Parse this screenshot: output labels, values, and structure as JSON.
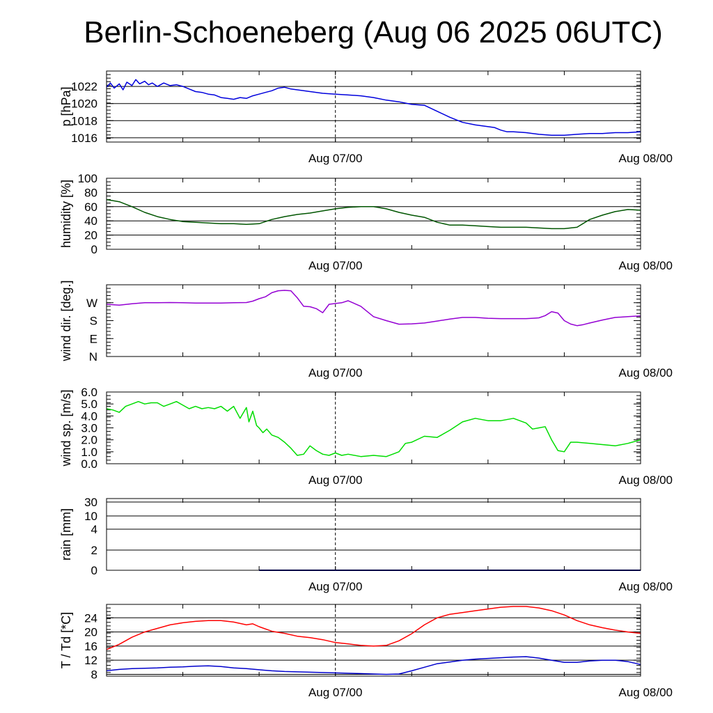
{
  "title": "Berlin-Schoeneberg (Aug 06 2025 06UTC)",
  "x_tick_labels": [
    "Aug 07/00",
    "Aug 08/00"
  ],
  "colors": {
    "pressure": "#0000dd",
    "humidity": "#005500",
    "wind_dir": "#9400d3",
    "wind_speed": "#00dd00",
    "temperature": "#ff0000",
    "dewpoint": "#0000cc",
    "grid": "#000000"
  },
  "chart_data": [
    {
      "type": "line",
      "ylabel": "p [hPa]",
      "x_unit": "hours from Aug 06 06UTC",
      "x_range": [
        0,
        42
      ],
      "ylim": [
        1015.5,
        1023.8
      ],
      "yticks": [
        1016,
        1018,
        1020,
        1022
      ],
      "ytick_labels": [
        "1016",
        "1018",
        "1020",
        "1022"
      ],
      "grid": true,
      "series": [
        {
          "key": "pressure",
          "x": [
            0,
            0.3,
            0.6,
            1,
            1.3,
            1.6,
            2,
            2.3,
            2.6,
            3,
            3.3,
            3.6,
            4,
            4.5,
            5,
            5.5,
            6,
            6.5,
            7,
            7.5,
            8,
            8.5,
            9,
            9.5,
            10,
            10.5,
            11,
            11.5,
            12,
            12.5,
            13,
            13.5,
            14,
            14.5,
            15,
            15.5,
            16,
            17,
            18,
            19,
            20,
            21,
            22,
            23,
            24,
            25,
            26,
            27,
            28,
            29,
            30,
            30.5,
            31,
            31.5,
            32,
            33,
            34,
            35,
            36,
            37,
            38,
            39,
            40,
            41,
            42
          ],
          "values": [
            1021.9,
            1022.4,
            1021.8,
            1022.3,
            1021.6,
            1022.5,
            1022.1,
            1022.8,
            1022.3,
            1022.6,
            1022.2,
            1022.4,
            1022.0,
            1022.4,
            1022.1,
            1022.2,
            1022.0,
            1021.7,
            1021.4,
            1021.3,
            1021.1,
            1021.0,
            1020.7,
            1020.6,
            1020.5,
            1020.7,
            1020.6,
            1020.9,
            1021.1,
            1021.3,
            1021.5,
            1021.8,
            1021.9,
            1021.7,
            1021.6,
            1021.5,
            1021.4,
            1021.2,
            1021.1,
            1021.0,
            1020.9,
            1020.7,
            1020.4,
            1020.2,
            1019.9,
            1019.8,
            1019.1,
            1018.4,
            1017.8,
            1017.5,
            1017.3,
            1017.2,
            1016.9,
            1016.7,
            1016.7,
            1016.6,
            1016.4,
            1016.3,
            1016.3,
            1016.4,
            1016.5,
            1016.5,
            1016.6,
            1016.6,
            1016.7
          ]
        }
      ]
    },
    {
      "type": "line",
      "ylabel": "humidity [%]",
      "x_unit": "hours from Aug 06 06UTC",
      "x_range": [
        0,
        42
      ],
      "ylim": [
        0,
        100
      ],
      "yticks": [
        0,
        20,
        40,
        60,
        80,
        100
      ],
      "ytick_labels": [
        "0",
        "20",
        "40",
        "60",
        "80",
        "100"
      ],
      "grid": true,
      "series": [
        {
          "key": "humidity",
          "x": [
            0,
            1,
            2,
            3,
            4,
            5,
            6,
            7,
            8,
            9,
            10,
            11,
            12,
            13,
            14,
            15,
            16,
            17,
            18,
            19,
            20,
            21,
            22,
            23,
            24,
            25,
            26,
            27,
            28,
            29,
            30,
            31,
            32,
            33,
            34,
            35,
            36,
            37,
            38,
            39,
            40,
            41,
            42
          ],
          "values": [
            70,
            67,
            60,
            52,
            46,
            42,
            39,
            38,
            37,
            36,
            36,
            35,
            36,
            42,
            46,
            49,
            51,
            54,
            57,
            59,
            60,
            60,
            57,
            52,
            48,
            45,
            38,
            34,
            34,
            33,
            32,
            31,
            31,
            31,
            30,
            29,
            29,
            31,
            42,
            48,
            53,
            56,
            55
          ]
        }
      ]
    },
    {
      "type": "line",
      "ylabel": "wind dir. [deg.]",
      "x_unit": "hours from Aug 06 06UTC",
      "x_range": [
        0,
        42
      ],
      "ylim": [
        0,
        360
      ],
      "yticks": [
        0,
        90,
        180,
        270
      ],
      "ytick_labels": [
        "N",
        "E",
        "S",
        "W"
      ],
      "grid": false,
      "series": [
        {
          "key": "wind_dir",
          "x": [
            0,
            1,
            2,
            3,
            4,
            5,
            6,
            7,
            8,
            9,
            10,
            11,
            11.5,
            12,
            12.5,
            13,
            13.5,
            14,
            14.5,
            15,
            15.5,
            16,
            16.5,
            17,
            17.5,
            18,
            18.5,
            19,
            20,
            21,
            22,
            23,
            24,
            25,
            26,
            27,
            28,
            29,
            30,
            31,
            32,
            33,
            33.5,
            34,
            34.5,
            35,
            35.5,
            36,
            36.5,
            37,
            37.5,
            38,
            39,
            40,
            41,
            42
          ],
          "values": [
            262,
            258,
            265,
            270,
            270,
            271,
            270,
            268,
            268,
            268,
            270,
            271,
            278,
            290,
            300,
            320,
            330,
            332,
            330,
            295,
            252,
            250,
            240,
            220,
            262,
            266,
            270,
            280,
            252,
            200,
            180,
            162,
            164,
            168,
            178,
            188,
            196,
            196,
            192,
            190,
            190,
            190,
            192,
            194,
            205,
            225,
            218,
            180,
            163,
            155,
            160,
            168,
            183,
            196,
            200,
            204
          ]
        }
      ]
    },
    {
      "type": "line",
      "ylabel": "wind sp. [m/s]",
      "x_unit": "hours from Aug 06 06UTC",
      "x_range": [
        0,
        42
      ],
      "ylim": [
        0,
        6.0
      ],
      "yticks": [
        0,
        1,
        2,
        3,
        4,
        5,
        6
      ],
      "ytick_labels": [
        "0.0",
        "1.0",
        "2.0",
        "3.0",
        "4.0",
        "5.0",
        "6.0"
      ],
      "grid": false,
      "series": [
        {
          "key": "wind_speed",
          "x": [
            0,
            0.5,
            1,
            1.5,
            2,
            2.5,
            3,
            3.5,
            4,
            4.5,
            5,
            5.5,
            6,
            6.5,
            7,
            7.5,
            8,
            8.5,
            9,
            9.5,
            10,
            10.5,
            11,
            11.2,
            11.5,
            11.8,
            12,
            12.3,
            12.6,
            13,
            13.5,
            14,
            14.5,
            15,
            15.5,
            16,
            16.5,
            17,
            17.5,
            18,
            18.5,
            19,
            20,
            21,
            22,
            22.5,
            23,
            23.5,
            24,
            25,
            26,
            27,
            28,
            29,
            30,
            31,
            32,
            33,
            33.5,
            34,
            34.5,
            35,
            35.5,
            36,
            36.5,
            37,
            38,
            39,
            40,
            41,
            42
          ],
          "values": [
            4.6,
            4.5,
            4.3,
            4.8,
            5.0,
            5.2,
            5.0,
            5.1,
            5.1,
            4.8,
            5.0,
            5.2,
            4.9,
            4.6,
            4.8,
            4.6,
            4.7,
            4.6,
            4.8,
            4.4,
            4.8,
            3.8,
            4.7,
            3.5,
            4.4,
            3.2,
            3.0,
            2.6,
            2.9,
            2.4,
            2.2,
            1.8,
            1.3,
            0.7,
            0.8,
            1.5,
            1.1,
            0.8,
            0.7,
            0.9,
            0.7,
            0.8,
            0.6,
            0.7,
            0.6,
            0.8,
            1.0,
            1.7,
            1.8,
            2.3,
            2.2,
            2.8,
            3.5,
            3.8,
            3.6,
            3.6,
            3.8,
            3.4,
            2.9,
            3.0,
            3.1,
            2.0,
            1.1,
            1.0,
            1.8,
            1.8,
            1.7,
            1.6,
            1.5,
            1.7,
            2.0
          ]
        }
      ]
    },
    {
      "type": "line",
      "ylabel": "rain [mm]",
      "x_unit": "hours from Aug 06 06UTC",
      "x_range": [
        0,
        42
      ],
      "yticks": [
        0,
        2,
        4,
        10,
        30
      ],
      "ytick_labels": [
        "0",
        "2",
        "4",
        "10",
        "30"
      ],
      "grid": true,
      "series": [
        {
          "key": "rain",
          "x": [
            12,
            42
          ],
          "values": [
            0,
            0
          ]
        }
      ]
    },
    {
      "type": "line",
      "ylabel": "T / Td [*C]",
      "x_unit": "hours from Aug 06 06UTC",
      "x_range": [
        0,
        42
      ],
      "ylim": [
        7.5,
        27.8
      ],
      "yticks": [
        8,
        12,
        16,
        20,
        24
      ],
      "ytick_labels": [
        "8",
        "12",
        "16",
        "20",
        "24"
      ],
      "grid": true,
      "series": [
        {
          "key": "temperature",
          "x": [
            0,
            1,
            2,
            3,
            4,
            5,
            6,
            7,
            8,
            9,
            10,
            11,
            11.5,
            12,
            13,
            14,
            15,
            16,
            17,
            18,
            19,
            20,
            21,
            22,
            23,
            24,
            25,
            26,
            27,
            28,
            29,
            30,
            31,
            32,
            33,
            34,
            35,
            36,
            37,
            38,
            39,
            40,
            41,
            42
          ],
          "values": [
            15,
            16.5,
            18.5,
            20,
            21,
            22,
            22.6,
            23,
            23.2,
            23.2,
            22.8,
            22,
            22.3,
            21.5,
            20.2,
            19.6,
            18.8,
            18.4,
            17.8,
            17.0,
            16.6,
            16.2,
            16.0,
            16.2,
            17.5,
            19.5,
            22,
            24,
            25,
            25.5,
            26,
            26.5,
            27,
            27.2,
            27.2,
            26.8,
            26,
            24.8,
            23.2,
            22,
            21.2,
            20.5,
            20.0,
            19.6
          ]
        },
        {
          "key": "dewpoint",
          "x": [
            0,
            1,
            2,
            3,
            4,
            5,
            6,
            7,
            8,
            9,
            10,
            11,
            12,
            13,
            14,
            15,
            16,
            17,
            18,
            19,
            20,
            21,
            22,
            23,
            24,
            25,
            26,
            27,
            28,
            29,
            30,
            31,
            32,
            33,
            34,
            35,
            36,
            37,
            38,
            39,
            40,
            41,
            42
          ],
          "values": [
            9.0,
            9.4,
            9.6,
            9.7,
            9.8,
            10.0,
            10.1,
            10.3,
            10.4,
            10.2,
            9.8,
            9.6,
            9.3,
            9.0,
            8.8,
            8.7,
            8.6,
            8.5,
            8.4,
            8.3,
            8.2,
            8.1,
            8.0,
            8.1,
            9.0,
            10.0,
            11.0,
            11.5,
            12.0,
            12.3,
            12.5,
            12.7,
            12.9,
            13.0,
            12.6,
            12.0,
            11.4,
            11.4,
            11.8,
            12.0,
            12.0,
            11.6,
            10.8
          ]
        }
      ]
    }
  ]
}
